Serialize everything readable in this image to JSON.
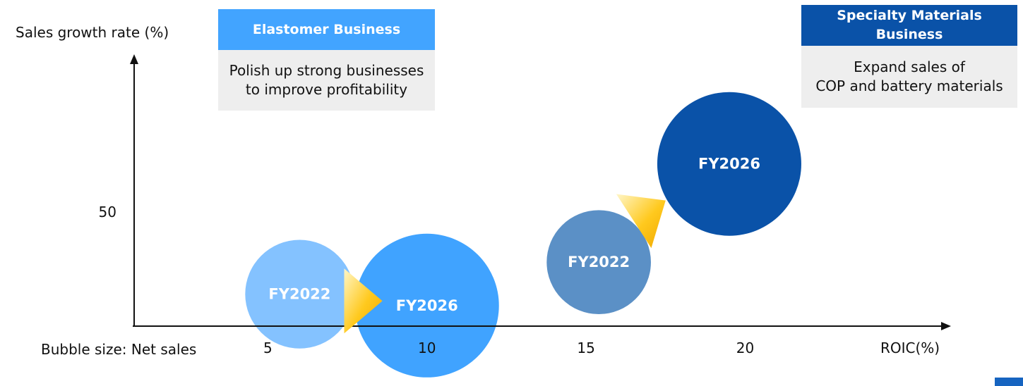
{
  "colors": {
    "elastomer_header": "#42a4ff",
    "specialty_header": "#0a52a8",
    "panel_body": "#eeeeee",
    "arrow_gold": "#f5b400",
    "page_tag": "#1664c0"
  },
  "panels": {
    "elastomer": {
      "title": "Elastomer Business",
      "text": "Polish up strong businesses\nto improve profitability"
    },
    "specialty": {
      "title": "Specialty Materials\nBusiness",
      "text": "Expand sales of\nCOP and battery materials"
    }
  },
  "chart_data": {
    "type": "scatter",
    "subtype": "bubble",
    "xlabel": "ROIC(%)",
    "ylabel": "Sales growth rate (%)",
    "size_note": "Bubble size: Net sales",
    "x_ticks": [
      5,
      10,
      15,
      20
    ],
    "y_ticks": [
      50
    ],
    "xlim": [
      0.8,
      26.2
    ],
    "ylim": [
      0,
      115
    ],
    "grid": false,
    "series": [
      {
        "name": "Elastomer Business",
        "points": [
          {
            "label": "FY2022",
            "x": 6.0,
            "y": 14,
            "size": 24,
            "color": "#84c2ff"
          },
          {
            "label": "FY2026",
            "x": 10.0,
            "y": 9,
            "size": 42,
            "color": "#40a3ff"
          }
        ],
        "arrow": {
          "from_x": 7.4,
          "from_y": 11,
          "to_x": 8.6,
          "to_y": 11
        }
      },
      {
        "name": "Specialty Materials Business",
        "points": [
          {
            "label": "FY2022",
            "x": 15.4,
            "y": 28,
            "size": 22,
            "color": "#5b90c6"
          },
          {
            "label": "FY2026",
            "x": 19.5,
            "y": 71,
            "size": 42,
            "color": "#0a52a8"
          }
        ],
        "arrow": {
          "from_x": 16.5,
          "from_y": 46,
          "to_x": 17.5,
          "to_y": 55
        }
      }
    ]
  }
}
